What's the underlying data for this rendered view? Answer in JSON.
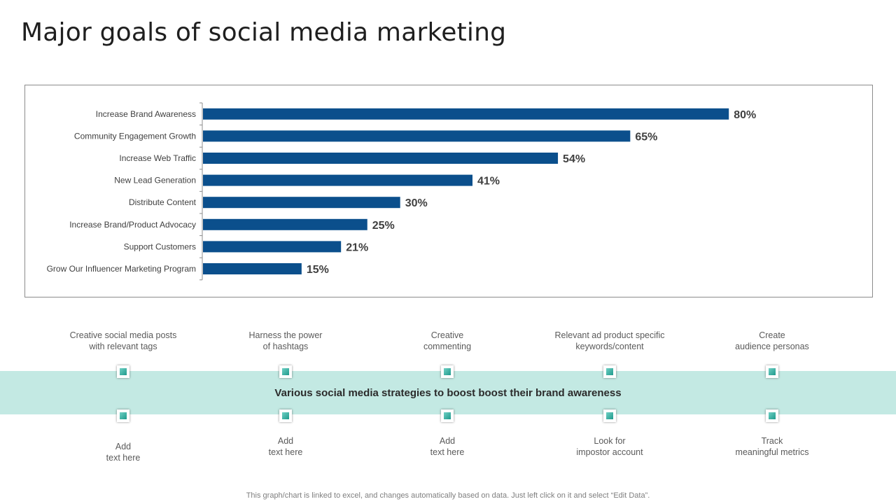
{
  "title": "Major goals of social media marketing",
  "chart_data": {
    "type": "bar",
    "orientation": "horizontal",
    "categories": [
      "Increase Brand Awareness",
      "Community Engagement Growth",
      "Increase Web Traffic",
      "New Lead Generation",
      "Distribute Content",
      "Increase Brand/Product Advocacy",
      "Support Customers",
      "Grow Our Influencer Marketing Program"
    ],
    "values": [
      80,
      65,
      54,
      41,
      30,
      25,
      21,
      15
    ],
    "value_labels": [
      "80%",
      "65%",
      "54%",
      "41%",
      "30%",
      "25%",
      "21%",
      "15%"
    ],
    "xlim": [
      0,
      100
    ],
    "bar_color": "#0b4f8c",
    "grid": false,
    "legend": false
  },
  "strategies": {
    "band_text": "Various social media strategies to boost boost their brand awareness",
    "top": [
      "Creative  social media posts\nwith relevant  tags",
      "Harness the power\nof hashtags",
      "Creative\ncommenting",
      "Relevant  ad product specific\nkeywords/content",
      "Create\naudience personas"
    ],
    "bottom": [
      "Add\ntext here",
      "Add\ntext here",
      "Add\ntext here",
      "Look for\nimpostor account",
      "Track\nmeaningful  metrics"
    ]
  },
  "colors": {
    "band": "#c3e9e3",
    "marker": "#2aa597"
  },
  "footer": "This graph/chart is linked to excel,  and changes automatically based on data. Just left click on it and select “Edit Data”."
}
